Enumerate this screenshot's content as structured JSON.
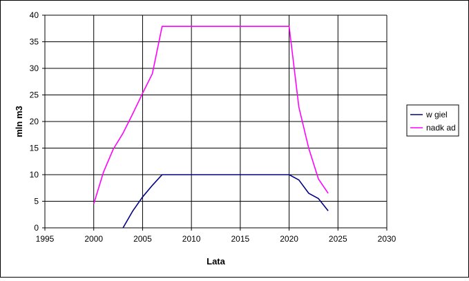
{
  "chart_data": {
    "type": "line",
    "title": "",
    "xlabel": "Lata",
    "ylabel": "mln m3",
    "xlim": [
      1995,
      2030
    ],
    "ylim": [
      0,
      40
    ],
    "x_ticks": [
      1995,
      2000,
      2005,
      2010,
      2015,
      2020,
      2025,
      2030
    ],
    "y_ticks": [
      0,
      5,
      10,
      15,
      20,
      25,
      30,
      35,
      40
    ],
    "x_tick_labels": [
      "1995",
      "2000",
      "2005",
      "2010",
      "2015",
      "2020",
      "2025",
      "2030"
    ],
    "y_tick_labels": [
      "0",
      "5",
      "10",
      "15",
      "20",
      "25",
      "30",
      "35",
      "40"
    ],
    "grid": true,
    "legend_position": "right",
    "series": [
      {
        "name": "w  giel",
        "color": "#000080",
        "x": [
          2003,
          2004,
          2005,
          2006,
          2007,
          2008,
          2009,
          2010,
          2011,
          2012,
          2013,
          2014,
          2015,
          2016,
          2017,
          2018,
          2019,
          2020,
          2021,
          2022,
          2023,
          2024
        ],
        "y": [
          0,
          3.2,
          5.8,
          8.0,
          10.0,
          10.0,
          10.0,
          10.0,
          10.0,
          10.0,
          10.0,
          10.0,
          10.0,
          10.0,
          10.0,
          10.0,
          10.0,
          10.0,
          9.0,
          6.5,
          5.5,
          3.2
        ]
      },
      {
        "name": "nadk ad",
        "color": "#ff00ff",
        "x": [
          2000,
          2001,
          2002,
          2003,
          2004,
          2005,
          2006,
          2007,
          2008,
          2009,
          2010,
          2011,
          2012,
          2013,
          2014,
          2015,
          2016,
          2017,
          2018,
          2019,
          2020,
          2021,
          2022,
          2023,
          2024
        ],
        "y": [
          4.5,
          10.5,
          14.8,
          17.8,
          21.5,
          25.3,
          29.0,
          37.9,
          37.9,
          37.9,
          37.9,
          37.9,
          37.9,
          37.9,
          37.9,
          37.9,
          37.9,
          37.9,
          37.9,
          37.9,
          37.9,
          22.7,
          15.0,
          9.2,
          6.5
        ]
      }
    ]
  }
}
